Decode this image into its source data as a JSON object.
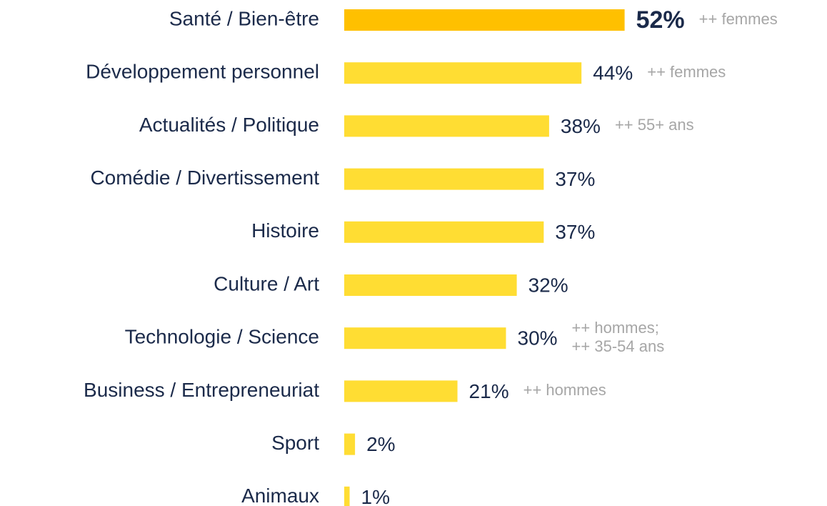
{
  "chart_data": {
    "type": "barh",
    "categories": [
      "Santé / Bien-être",
      "Développement personnel",
      "Actualités / Politique",
      "Comédie / Divertissement",
      "Histoire",
      "Culture / Art",
      "Technologie / Science",
      "Business / Entrepreneuriat",
      "Sport",
      "Animaux"
    ],
    "values": [
      52,
      44,
      38,
      37,
      37,
      32,
      30,
      21,
      2,
      1
    ],
    "value_labels": [
      "52%",
      "44%",
      "38%",
      "37%",
      "37%",
      "32%",
      "30%",
      "21%",
      "2%",
      "1%"
    ],
    "annotations": [
      [
        "++ femmes"
      ],
      [
        "++ femmes"
      ],
      [
        "++ 55+ ans"
      ],
      null,
      null,
      null,
      [
        "++ hommes;",
        "++ 35-54 ans"
      ],
      [
        "++ hommes"
      ],
      null,
      null
    ],
    "colors": [
      "#ffc000",
      "#ffdd33",
      "#ffdd33",
      "#ffdd33",
      "#ffdd33",
      "#ffdd33",
      "#ffdd33",
      "#ffdd33",
      "#ffdd33",
      "#ffdd33"
    ]
  }
}
